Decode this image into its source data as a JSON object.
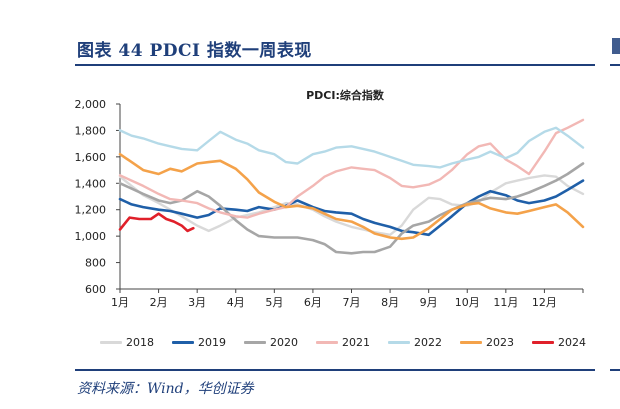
{
  "page": {
    "title": "图表 44  PDCI 指数一周表现",
    "source": "资料来源：Wind，华创证券"
  },
  "chart_data": {
    "type": "line",
    "title": "PDCI:综合指数",
    "xlabel": "",
    "ylabel": "",
    "ylim": [
      600,
      2000
    ],
    "yticks": [
      "600",
      "800",
      "1,000",
      "1,200",
      "1,400",
      "1,600",
      "1,800",
      "2,000"
    ],
    "ytick_values": [
      600,
      800,
      1000,
      1200,
      1400,
      1600,
      1800,
      2000
    ],
    "xticks": [
      "1月",
      "2月",
      "3月",
      "4月",
      "5月",
      "6月",
      "7月",
      "8月",
      "9月",
      "10月",
      "11月",
      "12月"
    ],
    "x_range": [
      0,
      12
    ],
    "grid": false,
    "legend_position": "bottom",
    "series": [
      {
        "name": "2018",
        "color": "#d9d9d9",
        "x": [
          0.0,
          0.3,
          0.6,
          1.0,
          1.3,
          1.6,
          2.0,
          2.3,
          2.6,
          3.0,
          3.3,
          3.6,
          4.0,
          4.3,
          4.6,
          5.0,
          5.3,
          5.6,
          6.0,
          6.3,
          6.6,
          7.0,
          7.3,
          7.6,
          8.0,
          8.3,
          8.6,
          9.0,
          9.3,
          9.6,
          10.0,
          10.3,
          10.6,
          11.0,
          11.3,
          11.6,
          12.0
        ],
        "y": [
          1450,
          1380,
          1310,
          1250,
          1200,
          1150,
          1080,
          1040,
          1080,
          1140,
          1160,
          1180,
          1220,
          1250,
          1240,
          1200,
          1150,
          1110,
          1070,
          1050,
          1030,
          1010,
          1080,
          1200,
          1290,
          1280,
          1240,
          1230,
          1260,
          1330,
          1400,
          1420,
          1440,
          1460,
          1450,
          1380,
          1320
        ]
      },
      {
        "name": "2019",
        "color": "#1f5fa8",
        "x": [
          0.0,
          0.3,
          0.6,
          1.0,
          1.3,
          1.6,
          2.0,
          2.3,
          2.6,
          3.0,
          3.3,
          3.6,
          4.0,
          4.3,
          4.6,
          5.0,
          5.3,
          5.6,
          6.0,
          6.3,
          6.6,
          7.0,
          7.3,
          7.6,
          8.0,
          8.3,
          8.6,
          9.0,
          9.3,
          9.6,
          10.0,
          10.3,
          10.6,
          11.0,
          11.3,
          11.6,
          12.0
        ],
        "y": [
          1280,
          1240,
          1220,
          1200,
          1190,
          1170,
          1140,
          1160,
          1210,
          1200,
          1190,
          1220,
          1200,
          1230,
          1270,
          1220,
          1190,
          1180,
          1170,
          1130,
          1100,
          1070,
          1040,
          1030,
          1010,
          1080,
          1150,
          1250,
          1300,
          1340,
          1310,
          1270,
          1250,
          1270,
          1300,
          1350,
          1420
        ]
      },
      {
        "name": "2020",
        "color": "#a6a6a6",
        "x": [
          0.0,
          0.3,
          0.6,
          1.0,
          1.3,
          1.6,
          2.0,
          2.3,
          2.6,
          3.0,
          3.3,
          3.6,
          4.0,
          4.3,
          4.6,
          5.0,
          5.3,
          5.6,
          6.0,
          6.3,
          6.6,
          7.0,
          7.3,
          7.6,
          8.0,
          8.3,
          8.6,
          9.0,
          9.3,
          9.6,
          10.0,
          10.3,
          10.6,
          11.0,
          11.3,
          11.6,
          12.0
        ],
        "y": [
          1400,
          1360,
          1320,
          1270,
          1250,
          1270,
          1340,
          1300,
          1230,
          1120,
          1050,
          1000,
          990,
          990,
          990,
          970,
          940,
          880,
          870,
          880,
          880,
          920,
          1020,
          1080,
          1110,
          1160,
          1200,
          1250,
          1270,
          1290,
          1280,
          1300,
          1330,
          1380,
          1420,
          1470,
          1550
        ]
      },
      {
        "name": "2021",
        "color": "#f2b8b5",
        "x": [
          0.0,
          0.3,
          0.6,
          1.0,
          1.3,
          1.6,
          2.0,
          2.3,
          2.6,
          3.0,
          3.3,
          3.6,
          4.0,
          4.3,
          4.6,
          5.0,
          5.3,
          5.6,
          6.0,
          6.3,
          6.6,
          7.0,
          7.3,
          7.6,
          8.0,
          8.3,
          8.6,
          9.0,
          9.3,
          9.6,
          10.0,
          10.3,
          10.6,
          11.0,
          11.3,
          11.6,
          12.0
        ],
        "y": [
          1460,
          1420,
          1380,
          1320,
          1280,
          1270,
          1250,
          1210,
          1180,
          1150,
          1140,
          1170,
          1200,
          1220,
          1300,
          1380,
          1450,
          1490,
          1520,
          1510,
          1500,
          1440,
          1380,
          1370,
          1390,
          1430,
          1500,
          1620,
          1680,
          1700,
          1580,
          1530,
          1470,
          1640,
          1780,
          1820,
          1880
        ]
      },
      {
        "name": "2022",
        "color": "#b5dae8",
        "x": [
          0.0,
          0.3,
          0.6,
          1.0,
          1.3,
          1.6,
          2.0,
          2.3,
          2.6,
          3.0,
          3.3,
          3.6,
          4.0,
          4.3,
          4.6,
          5.0,
          5.3,
          5.6,
          6.0,
          6.3,
          6.6,
          7.0,
          7.3,
          7.6,
          8.0,
          8.3,
          8.6,
          9.0,
          9.3,
          9.6,
          10.0,
          10.3,
          10.6,
          11.0,
          11.3,
          11.6,
          12.0
        ],
        "y": [
          1800,
          1760,
          1740,
          1700,
          1680,
          1660,
          1650,
          1720,
          1790,
          1730,
          1700,
          1650,
          1620,
          1560,
          1550,
          1620,
          1640,
          1670,
          1680,
          1660,
          1640,
          1600,
          1570,
          1540,
          1530,
          1520,
          1550,
          1580,
          1600,
          1640,
          1590,
          1630,
          1720,
          1790,
          1820,
          1760,
          1670
        ]
      },
      {
        "name": "2023",
        "color": "#f4a24a",
        "x": [
          0.0,
          0.3,
          0.6,
          1.0,
          1.3,
          1.6,
          2.0,
          2.3,
          2.6,
          3.0,
          3.3,
          3.6,
          4.0,
          4.3,
          4.6,
          5.0,
          5.3,
          5.6,
          6.0,
          6.3,
          6.6,
          7.0,
          7.3,
          7.6,
          8.0,
          8.3,
          8.6,
          9.0,
          9.3,
          9.6,
          10.0,
          10.3,
          10.6,
          11.0,
          11.3,
          11.6,
          12.0
        ],
        "y": [
          1620,
          1560,
          1500,
          1470,
          1510,
          1490,
          1550,
          1560,
          1570,
          1510,
          1430,
          1330,
          1260,
          1220,
          1230,
          1210,
          1170,
          1130,
          1110,
          1070,
          1020,
          990,
          980,
          990,
          1060,
          1130,
          1200,
          1240,
          1250,
          1210,
          1180,
          1170,
          1190,
          1220,
          1240,
          1180,
          1070
        ]
      },
      {
        "name": "2024",
        "color": "#e0202a",
        "x": [
          0.0,
          0.25,
          0.5,
          0.8,
          1.0,
          1.2,
          1.4,
          1.6,
          1.75,
          1.9
        ],
        "y": [
          1050,
          1140,
          1130,
          1130,
          1170,
          1130,
          1110,
          1080,
          1040,
          1060
        ]
      }
    ]
  }
}
